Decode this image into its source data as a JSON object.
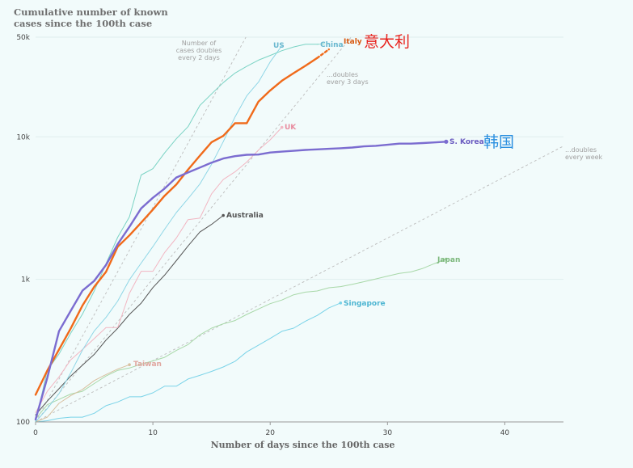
{
  "chart_data": {
    "type": "line",
    "title_lines": [
      "Cumulative number of known",
      "cases since the 100th case"
    ],
    "xlabel": "Number of days since the 100th case",
    "ylabel": "",
    "y_scale": "log",
    "xlim": [
      0,
      45
    ],
    "ylim": [
      100,
      50000
    ],
    "x_ticks": [
      0,
      10,
      20,
      30,
      40
    ],
    "y_ticks": [
      {
        "value": 100,
        "label": "100"
      },
      {
        "value": 1000,
        "label": "1k"
      },
      {
        "value": 10000,
        "label": "10k"
      },
      {
        "value": 50000,
        "label": "50k"
      }
    ],
    "series": [
      {
        "name": "Singapore",
        "label": "Singapore",
        "color": "#7ad3e8",
        "width": 1,
        "dashed": false,
        "end_marker": true,
        "label_color": "#4fb6d2",
        "values": [
          [
            0,
            100
          ],
          [
            1,
            102
          ],
          [
            2,
            106
          ],
          [
            3,
            108
          ],
          [
            4,
            108
          ],
          [
            5,
            115
          ],
          [
            6,
            130
          ],
          [
            7,
            138
          ],
          [
            8,
            150
          ],
          [
            9,
            150
          ],
          [
            10,
            160
          ],
          [
            11,
            178
          ],
          [
            12,
            178
          ],
          [
            13,
            200
          ],
          [
            14,
            212
          ],
          [
            15,
            226
          ],
          [
            16,
            243
          ],
          [
            17,
            266
          ],
          [
            18,
            310
          ],
          [
            19,
            345
          ],
          [
            20,
            385
          ],
          [
            21,
            432
          ],
          [
            22,
            455
          ],
          [
            23,
            509
          ],
          [
            24,
            558
          ],
          [
            25,
            631
          ],
          [
            26,
            683
          ]
        ]
      },
      {
        "name": "Japan",
        "label": "Japan",
        "color": "#a8d8a8",
        "width": 1,
        "dashed": false,
        "end_marker": true,
        "label_color": "#7cb87c",
        "values": [
          [
            0,
            105
          ],
          [
            1,
            132
          ],
          [
            2,
            144
          ],
          [
            3,
            157
          ],
          [
            4,
            164
          ],
          [
            5,
            186
          ],
          [
            6,
            210
          ],
          [
            7,
            230
          ],
          [
            8,
            239
          ],
          [
            9,
            254
          ],
          [
            10,
            268
          ],
          [
            11,
            284
          ],
          [
            12,
            317
          ],
          [
            13,
            349
          ],
          [
            14,
            408
          ],
          [
            15,
            455
          ],
          [
            16,
            488
          ],
          [
            17,
            514
          ],
          [
            18,
            568
          ],
          [
            19,
            620
          ],
          [
            20,
            675
          ],
          [
            21,
            716
          ],
          [
            22,
            780
          ],
          [
            23,
            814
          ],
          [
            24,
            829
          ],
          [
            25,
            873
          ],
          [
            26,
            889
          ],
          [
            27,
            924
          ],
          [
            28,
            963
          ],
          [
            29,
            1007
          ],
          [
            30,
            1054
          ],
          [
            31,
            1101
          ],
          [
            32,
            1128
          ],
          [
            33,
            1193
          ],
          [
            34,
            1290
          ],
          [
            35,
            1387
          ]
        ]
      },
      {
        "name": "Taiwan",
        "label": "Taiwan",
        "color": "#d8c0a0",
        "width": 1,
        "dashed": false,
        "end_marker": true,
        "label_color": "#e0a7a0",
        "values": [
          [
            0,
            100
          ],
          [
            1,
            108
          ],
          [
            2,
            135
          ],
          [
            3,
            153
          ],
          [
            4,
            169
          ],
          [
            5,
            195
          ],
          [
            6,
            215
          ],
          [
            7,
            235
          ],
          [
            8,
            252
          ]
        ]
      },
      {
        "name": "Australia",
        "label": "Australia",
        "color": "#555555",
        "width": 1,
        "dashed": false,
        "end_marker": true,
        "label_color": "#555555",
        "values": [
          [
            0,
            112
          ],
          [
            1,
            140
          ],
          [
            2,
            171
          ],
          [
            3,
            210
          ],
          [
            4,
            250
          ],
          [
            5,
            298
          ],
          [
            6,
            375
          ],
          [
            7,
            454
          ],
          [
            8,
            568
          ],
          [
            9,
            681
          ],
          [
            10,
            876
          ],
          [
            11,
            1071
          ],
          [
            12,
            1352
          ],
          [
            13,
            1716
          ],
          [
            14,
            2146
          ],
          [
            15,
            2431
          ],
          [
            16,
            2810
          ]
        ]
      },
      {
        "name": "UK",
        "label": "UK",
        "color": "#f2b6c2",
        "width": 1,
        "dashed": false,
        "end_marker": true,
        "label_color": "#e88da0",
        "values": [
          [
            0,
            116
          ],
          [
            1,
            164
          ],
          [
            2,
            207
          ],
          [
            3,
            273
          ],
          [
            4,
            322
          ],
          [
            5,
            384
          ],
          [
            6,
            459
          ],
          [
            7,
            459
          ],
          [
            8,
            798
          ],
          [
            9,
            1140
          ],
          [
            10,
            1140
          ],
          [
            11,
            1543
          ],
          [
            12,
            1950
          ],
          [
            13,
            2626
          ],
          [
            14,
            2689
          ],
          [
            15,
            3983
          ],
          [
            16,
            5018
          ],
          [
            17,
            5683
          ],
          [
            18,
            6650
          ],
          [
            19,
            8077
          ],
          [
            20,
            9529
          ],
          [
            21,
            11658
          ]
        ]
      },
      {
        "name": "US",
        "label": "US",
        "color": "#8fd6e6",
        "width": 1,
        "dashed": false,
        "end_marker": false,
        "label_color": "#6ab8cf",
        "values": [
          [
            0,
            100
          ],
          [
            1,
            124
          ],
          [
            2,
            158
          ],
          [
            3,
            221
          ],
          [
            4,
            319
          ],
          [
            5,
            435
          ],
          [
            6,
            541
          ],
          [
            7,
            704
          ],
          [
            8,
            994
          ],
          [
            9,
            1301
          ],
          [
            10,
            1697
          ],
          [
            11,
            2247
          ],
          [
            12,
            2943
          ],
          [
            13,
            3680
          ],
          [
            14,
            4663
          ],
          [
            15,
            6411
          ],
          [
            16,
            9259
          ],
          [
            17,
            13789
          ],
          [
            18,
            19383
          ],
          [
            19,
            24207
          ],
          [
            20,
            33546
          ],
          [
            21,
            43667
          ]
        ]
      },
      {
        "name": "China",
        "label": "China",
        "color": "#7ad3c4",
        "width": 1,
        "dashed": false,
        "end_marker": false,
        "label_color": "#6ab8cf",
        "values": [
          [
            0,
            100
          ],
          [
            1,
            230
          ],
          [
            2,
            300
          ],
          [
            3,
            420
          ],
          [
            4,
            571
          ],
          [
            5,
            830
          ],
          [
            6,
            1287
          ],
          [
            7,
            1975
          ],
          [
            8,
            2744
          ],
          [
            9,
            5400
          ],
          [
            10,
            5974
          ],
          [
            11,
            7711
          ],
          [
            12,
            9692
          ],
          [
            13,
            11791
          ],
          [
            14,
            16600
          ],
          [
            15,
            20000
          ],
          [
            16,
            24000
          ],
          [
            17,
            28000
          ],
          [
            18,
            31200
          ],
          [
            19,
            34500
          ],
          [
            20,
            37200
          ],
          [
            21,
            40200
          ],
          [
            22,
            42700
          ],
          [
            23,
            44600
          ],
          [
            24,
            44600
          ]
        ]
      },
      {
        "name": "China (dashed)",
        "label": "",
        "color": "#7ad3c4",
        "width": 1,
        "dashed": true,
        "end_marker": false,
        "label_color": "#6ab8cf",
        "values": [
          [
            24,
            44600
          ],
          [
            25,
            45200
          ]
        ]
      },
      {
        "name": "Italy",
        "label": "Italy",
        "color": "#f06a1a",
        "width": 2.4,
        "dashed": false,
        "end_marker": false,
        "label_color": "#d85a12",
        "values": [
          [
            0,
            155
          ],
          [
            1,
            229
          ],
          [
            2,
            322
          ],
          [
            3,
            453
          ],
          [
            4,
            655
          ],
          [
            5,
            888
          ],
          [
            6,
            1128
          ],
          [
            7,
            1694
          ],
          [
            8,
            2036
          ],
          [
            9,
            2502
          ],
          [
            10,
            3089
          ],
          [
            11,
            3858
          ],
          [
            12,
            4636
          ],
          [
            13,
            5883
          ],
          [
            14,
            7375
          ],
          [
            15,
            9172
          ],
          [
            16,
            10149
          ],
          [
            17,
            12462
          ],
          [
            18,
            12462
          ],
          [
            19,
            17660
          ],
          [
            20,
            21157
          ],
          [
            21,
            24747
          ],
          [
            22,
            27980
          ],
          [
            23,
            31506
          ],
          [
            24,
            35713
          ]
        ]
      },
      {
        "name": "Italy (dashed)",
        "label": "",
        "color": "#f06a1a",
        "width": 2.4,
        "dashed": true,
        "end_marker": false,
        "label_color": "#d85a12",
        "values": [
          [
            24,
            35713
          ],
          [
            25,
            41035
          ]
        ]
      },
      {
        "name": "S. Korea",
        "label": "S. Korea",
        "color": "#7b6cd0",
        "width": 2.4,
        "dashed": false,
        "end_marker": true,
        "label_color": "#6a5bc0",
        "values": [
          [
            0,
            104
          ],
          [
            1,
            204
          ],
          [
            2,
            433
          ],
          [
            3,
            602
          ],
          [
            4,
            833
          ],
          [
            5,
            977
          ],
          [
            6,
            1261
          ],
          [
            7,
            1766
          ],
          [
            8,
            2337
          ],
          [
            9,
            3150
          ],
          [
            10,
            3736
          ],
          [
            11,
            4335
          ],
          [
            12,
            5186
          ],
          [
            13,
            5621
          ],
          [
            14,
            6088
          ],
          [
            15,
            6593
          ],
          [
            16,
            7041
          ],
          [
            17,
            7314
          ],
          [
            18,
            7478
          ],
          [
            19,
            7513
          ],
          [
            20,
            7755
          ],
          [
            21,
            7869
          ],
          [
            22,
            7979
          ],
          [
            23,
            8086
          ],
          [
            24,
            8162
          ],
          [
            25,
            8236
          ],
          [
            26,
            8320
          ],
          [
            27,
            8413
          ],
          [
            28,
            8565
          ],
          [
            29,
            8652
          ],
          [
            30,
            8799
          ],
          [
            31,
            8961
          ],
          [
            32,
            8961
          ],
          [
            33,
            9037
          ],
          [
            34,
            9137
          ],
          [
            35,
            9241
          ]
        ]
      }
    ],
    "reference_lines": [
      {
        "label": "Number of cases doubles every 2 days",
        "doubling_days": 2
      },
      {
        "label": "...doubles every 3 days",
        "doubling_days": 3
      },
      {
        "label": "...doubles every week",
        "doubling_days": 7
      }
    ],
    "annotations": {
      "doubles_2": [
        "Number of",
        "cases doubles",
        "every 2 days"
      ],
      "doubles_3": [
        "...doubles",
        "every 3 days"
      ],
      "doubles_week": [
        "...doubles",
        "every week"
      ]
    },
    "overlay_labels": {
      "italy_cn": "意大利",
      "korea_cn": "韩国"
    },
    "colors": {
      "background": "#f2fbfb",
      "grid": "#dfeeee",
      "reference": "#bcbcbc",
      "italy_cn": "#e8231e",
      "korea_cn": "#2a8fe0"
    }
  }
}
